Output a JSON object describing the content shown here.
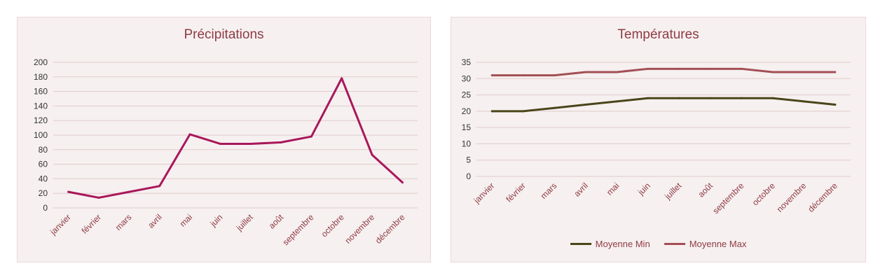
{
  "chart_data": [
    {
      "type": "line",
      "title": "Précipitations",
      "categories": [
        "janvier",
        "février",
        "mars",
        "avril",
        "mai",
        "juin",
        "juillet",
        "août",
        "septembre",
        "octobre",
        "novembre",
        "décembre"
      ],
      "series": [
        {
          "values": [
            22,
            14,
            22,
            30,
            101,
            88,
            88,
            90,
            98,
            178,
            73,
            35
          ],
          "color": "#a8185a"
        }
      ],
      "ylim": [
        0,
        200
      ],
      "yticks": [
        0,
        20,
        40,
        60,
        80,
        100,
        120,
        140,
        160,
        180,
        200
      ],
      "grid": true,
      "legend": "none"
    },
    {
      "type": "line",
      "title": "Températures",
      "categories": [
        "janvier",
        "février",
        "mars",
        "avril",
        "mai",
        "juin",
        "juillet",
        "août",
        "septembre",
        "octobre",
        "novembre",
        "décembre"
      ],
      "series": [
        {
          "name": "Moyenne Min",
          "values": [
            20,
            20,
            21,
            22,
            23,
            24,
            24,
            24,
            24,
            24,
            23,
            22
          ],
          "color": "#4a4519"
        },
        {
          "name": "Moyenne Max",
          "values": [
            31,
            31,
            31,
            32,
            32,
            33,
            33,
            33,
            33,
            32,
            32,
            32
          ],
          "color": "#a34f55"
        }
      ],
      "ylim": [
        0,
        35
      ],
      "yticks": [
        0,
        5,
        10,
        15,
        20,
        25,
        30,
        35
      ],
      "grid": true,
      "legend": "bottom"
    }
  ],
  "colors": {
    "text": "#8f3a43",
    "grid": "#e2caca",
    "panel": "#f6f0f0"
  }
}
